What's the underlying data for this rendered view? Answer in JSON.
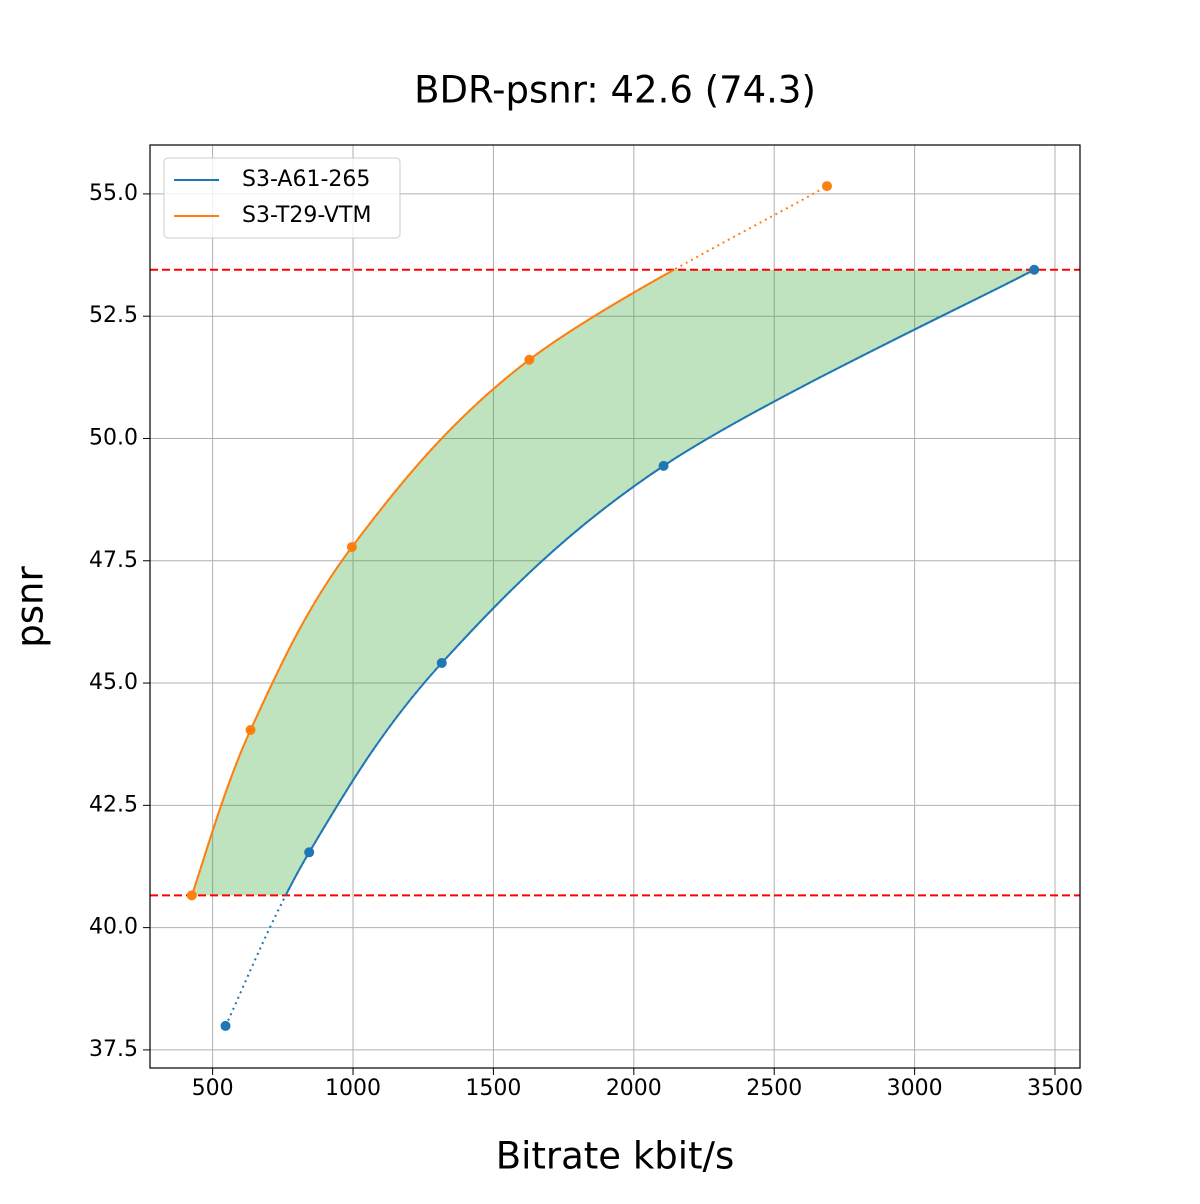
{
  "chart_data": {
    "type": "line",
    "title": "BDR-psnr: 42.6 (74.3)",
    "x_label": "Bitrate kbit/s",
    "y_label": "psnr",
    "xlim": [
      277,
      3589
    ],
    "ylim": [
      37.13,
      56.0
    ],
    "xticks": [
      500,
      1000,
      1500,
      2000,
      2500,
      3000,
      3500
    ],
    "yticks": [
      {
        "value": 37.5,
        "label": "37.5"
      },
      {
        "value": 40,
        "label": "40.0"
      },
      {
        "value": 42.5,
        "label": "42.5"
      },
      {
        "value": 45,
        "label": "45.0"
      },
      {
        "value": 47.5,
        "label": "47.5"
      },
      {
        "value": 50,
        "label": "50.0"
      },
      {
        "value": 52.5,
        "label": "52.5"
      },
      {
        "value": 55,
        "label": "55.0"
      }
    ],
    "grid": true,
    "legend": "upper left",
    "series": [
      {
        "name": "S3-A61-265",
        "color": "#1f77b4",
        "x": [
          546,
          844,
          1316,
          2106,
          3426
        ],
        "values": [
          37.99,
          41.54,
          45.41,
          49.44,
          53.45
        ]
      },
      {
        "name": "S3-T29-VTM",
        "color": "#ff7f0e",
        "x": [
          426,
          635,
          996,
          1628,
          2688
        ],
        "values": [
          40.66,
          44.04,
          47.78,
          51.61,
          55.16
        ]
      }
    ],
    "hlines": [
      40.66,
      53.45
    ],
    "hline_color": "#ff0000",
    "fill_color": "#2ca02c"
  }
}
